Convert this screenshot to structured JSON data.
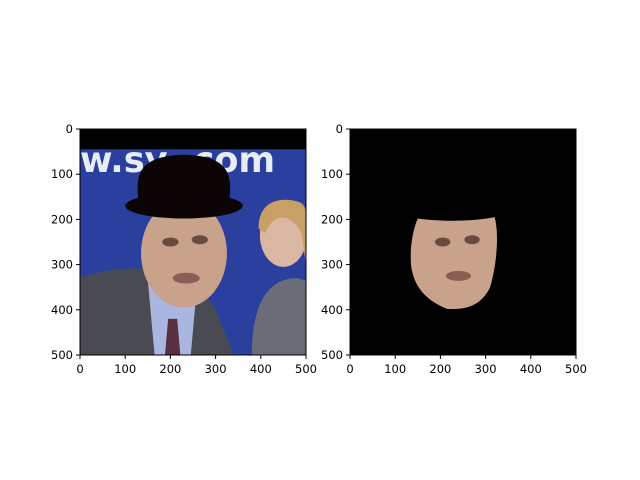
{
  "chart_data": [
    {
      "type": "image",
      "panel": "left",
      "content": "photo of two people with a black bowler hat overlaid on the man's head; partial banner text visible",
      "banner_text": "w.sy   .com",
      "xlim": [
        0,
        500
      ],
      "ylim": [
        500,
        0
      ],
      "xticks": [
        "0",
        "100",
        "200",
        "300",
        "400",
        "500"
      ],
      "yticks": [
        "0",
        "100",
        "200",
        "300",
        "400",
        "500"
      ],
      "grid": false,
      "colors": {
        "background_band": "#000000",
        "banner_blue": "#2a3f9e",
        "hat": "#0b0506",
        "skin": "#c9a28c",
        "suit": "#4a4a52",
        "shirt": "#a9b6e0"
      }
    },
    {
      "type": "image",
      "panel": "right",
      "content": "segmented face of the man on a black background",
      "xlim": [
        0,
        500
      ],
      "ylim": [
        500,
        0
      ],
      "xticks": [
        "0",
        "100",
        "200",
        "300",
        "400",
        "500"
      ],
      "yticks": [
        "0",
        "100",
        "200",
        "300",
        "400",
        "500"
      ],
      "grid": false,
      "colors": {
        "background": "#000000",
        "skin": "#c9a28c"
      }
    }
  ]
}
